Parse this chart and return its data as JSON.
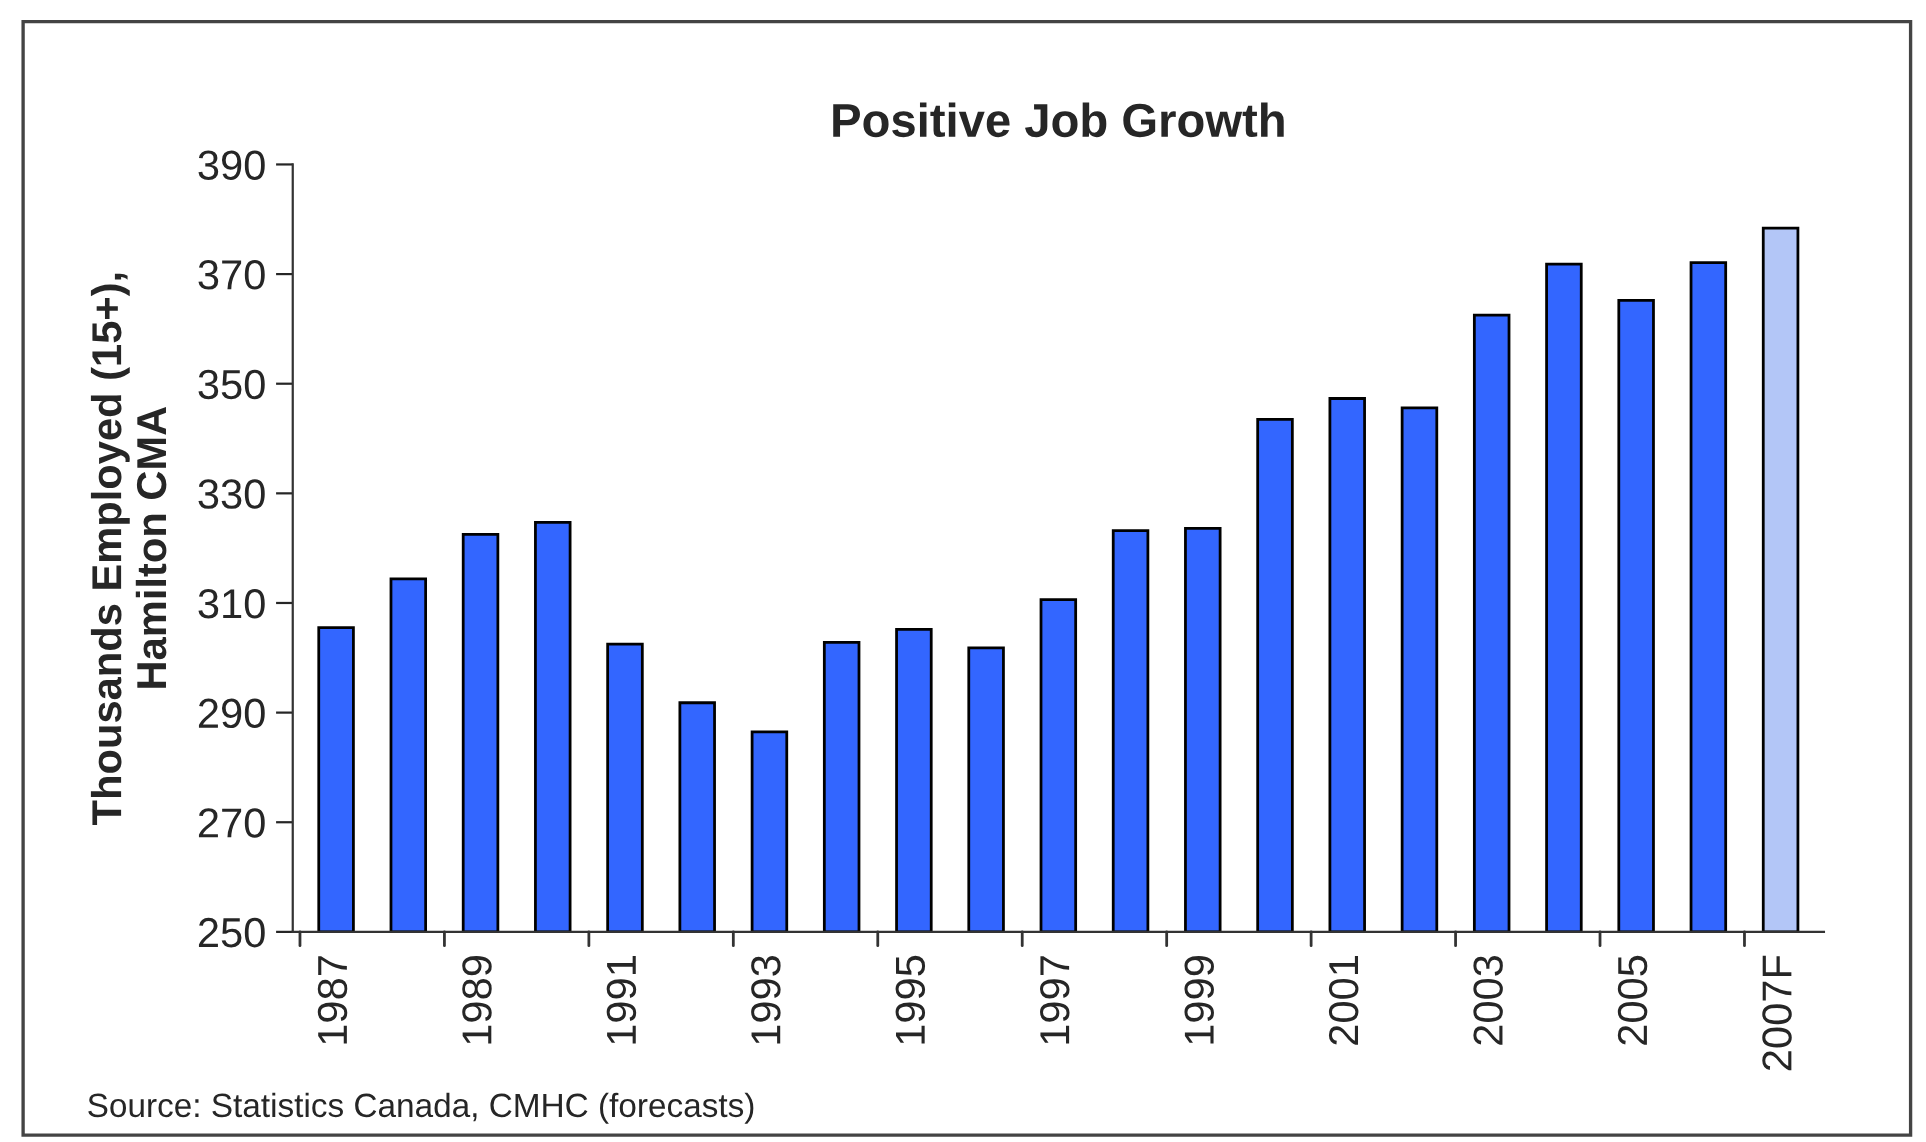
{
  "chart_data": {
    "type": "bar",
    "title": "Positive Job Growth",
    "ylabel": "Thousands Employed (15+),\nHamilton CMA",
    "categories": [
      "1987",
      null,
      "1989",
      null,
      "1991",
      null,
      "1993",
      null,
      "1995",
      null,
      "1997",
      null,
      "1999",
      null,
      "2001",
      null,
      "2003",
      null,
      "2005",
      null,
      "2007F"
    ],
    "values": [
      305.5,
      314.4,
      322.5,
      324.7,
      302.5,
      291.8,
      286.5,
      302.8,
      305.2,
      301.8,
      310.6,
      323.2,
      323.6,
      343.5,
      347.3,
      345.6,
      362.5,
      371.8,
      365.2,
      372.1,
      378.4
    ],
    "colors": [
      "#3366ff",
      "#3366ff",
      "#3366ff",
      "#3366ff",
      "#3366ff",
      "#3366ff",
      "#3366ff",
      "#3366ff",
      "#3366ff",
      "#3366ff",
      "#3366ff",
      "#3366ff",
      "#3366ff",
      "#3366ff",
      "#3366ff",
      "#3366ff",
      "#3366ff",
      "#3366ff",
      "#3366ff",
      "#3366ff",
      "#b3c6f7"
    ],
    "ylim": [
      250,
      390
    ],
    "yticks": [
      250,
      270,
      290,
      310,
      330,
      350,
      370,
      390
    ],
    "grid": false,
    "legend": false,
    "annotations": [
      "Source: Statistics Canada, CMHC (forecasts)"
    ]
  }
}
